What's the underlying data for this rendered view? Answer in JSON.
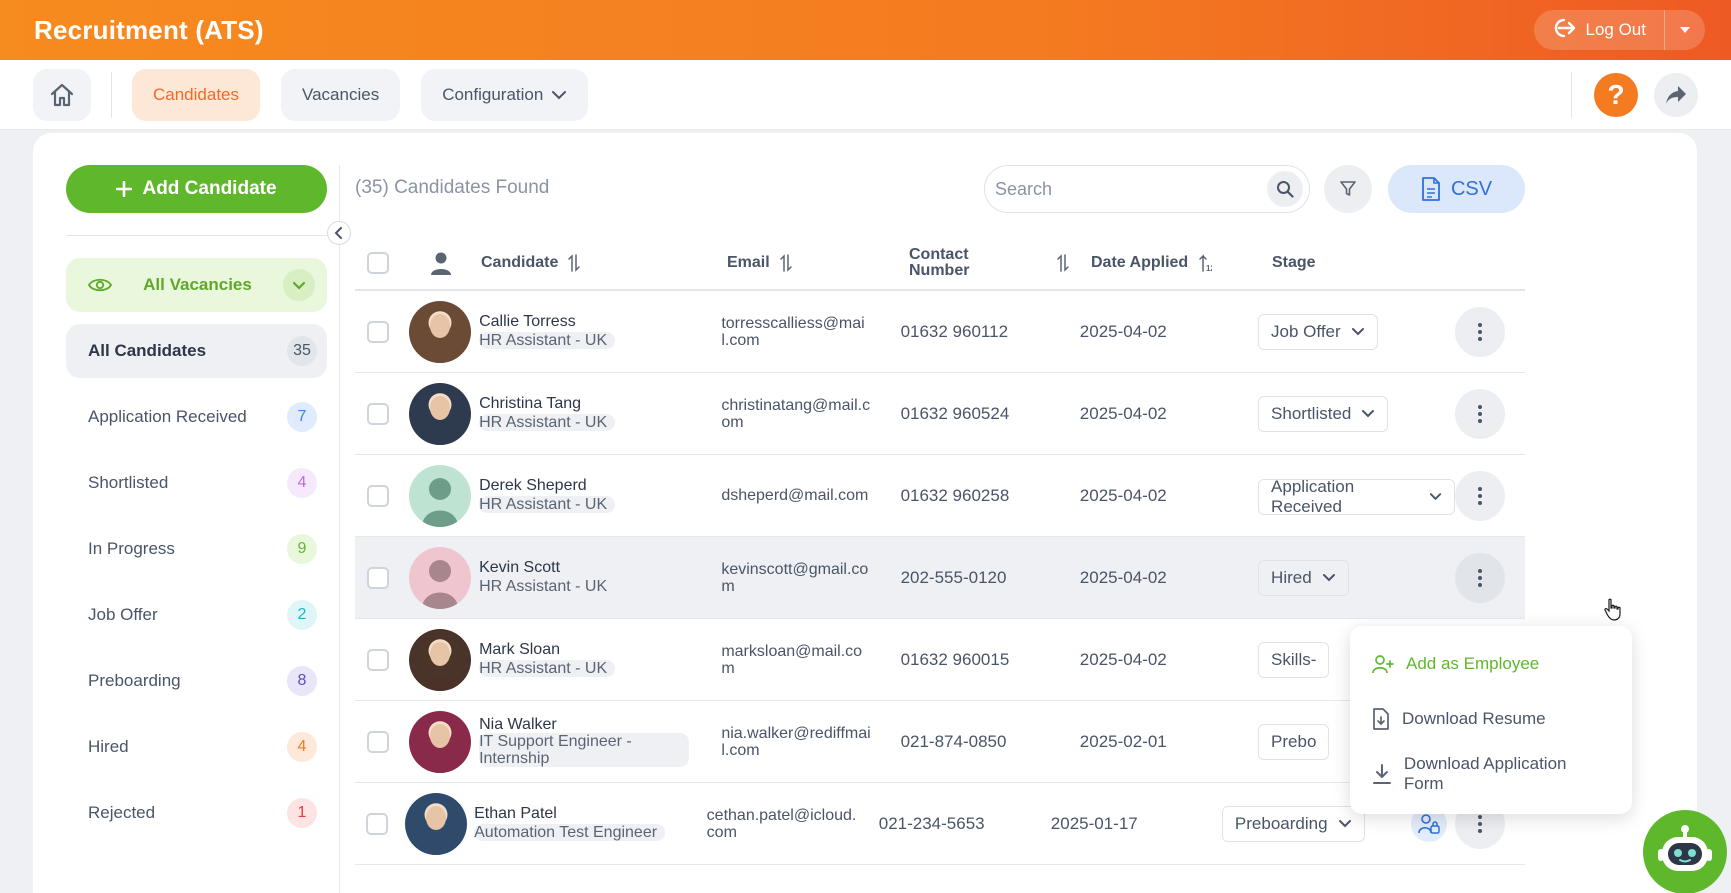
{
  "app": {
    "title": "Recruitment (ATS)",
    "logout_label": "Log Out"
  },
  "nav": {
    "tabs": [
      {
        "label": "Candidates",
        "active": true
      },
      {
        "label": "Vacancies",
        "active": false
      },
      {
        "label": "Configuration",
        "active": false
      }
    ],
    "help_label": "?"
  },
  "sidebar": {
    "add_label": "Add Candidate",
    "vacancy_filter": "All Vacancies",
    "stages": [
      {
        "name": "All Candidates",
        "count": "35",
        "color": "#4a5568",
        "bg": "#e2e5ea"
      },
      {
        "name": "Application Received",
        "count": "7",
        "color": "#3b82f6",
        "bg": "#e0ecfd"
      },
      {
        "name": "Shortlisted",
        "count": "4",
        "color": "#c266e6",
        "bg": "#f6e9fc"
      },
      {
        "name": "In Progress",
        "count": "9",
        "color": "#5fb82c",
        "bg": "#e9f7dc"
      },
      {
        "name": "Job Offer",
        "count": "2",
        "color": "#1fb3c4",
        "bg": "#dff6f8"
      },
      {
        "name": "Preboarding",
        "count": "8",
        "color": "#5b4fc4",
        "bg": "#e8e6f8"
      },
      {
        "name": "Hired",
        "count": "4",
        "color": "#f47b20",
        "bg": "#fde9da"
      },
      {
        "name": "Rejected",
        "count": "1",
        "color": "#e53e3e",
        "bg": "#fde3e3"
      }
    ]
  },
  "main": {
    "found_label": "(35) Candidates Found",
    "search_placeholder": "Search",
    "csv_label": "CSV",
    "headers": {
      "candidate": "Candidate",
      "email": "Email",
      "contact": "Contact Number",
      "date": "Date Applied",
      "stage": "Stage"
    },
    "rows": [
      {
        "name": "Callie Torress",
        "vacancy": "HR Assistant - UK",
        "email": "torresscalliess@mail.com",
        "phone": "01632 960112",
        "date": "2025-04-02",
        "stage": "Job Offer",
        "avatar": "photo",
        "avatar_color": "#6b4a36"
      },
      {
        "name": "Christina Tang",
        "vacancy": "HR Assistant - UK",
        "email": "christinatang@mail.com",
        "phone": "01632 960524",
        "date": "2025-04-02",
        "stage": "Shortlisted",
        "avatar": "photo",
        "avatar_color": "#2e3b4e"
      },
      {
        "name": "Derek Sheperd",
        "vacancy": "HR Assistant - UK",
        "email": "dsheperd@mail.com",
        "phone": "01632 960258",
        "date": "2025-04-02",
        "stage": "Application Received",
        "avatar": "placeholder-green"
      },
      {
        "name": "Kevin Scott",
        "vacancy": "HR Assistant - UK",
        "email": "kevinscott@gmail.com",
        "phone": "202-555-0120",
        "date": "2025-04-02",
        "stage": "Hired",
        "avatar": "placeholder-pink"
      },
      {
        "name": "Mark Sloan",
        "vacancy": "HR Assistant - UK",
        "email": "marksloan@mail.com",
        "phone": "01632 960015",
        "date": "2025-04-02",
        "stage": "Skills-",
        "avatar": "photo",
        "avatar_color": "#4a3328"
      },
      {
        "name": "Nia Walker",
        "vacancy": "IT Support Engineer - Internship",
        "email": "nia.walker@rediffmail.com",
        "phone": "021-874-0850",
        "date": "2025-02-01",
        "stage": "Prebo",
        "avatar": "photo",
        "avatar_color": "#8a2a4a"
      },
      {
        "name": "Ethan Patel",
        "vacancy": "Automation Test Engineer",
        "email": "cethan.patel@icloud.com",
        "phone": "021-234-5653",
        "date": "2025-01-17",
        "stage": "Preboarding",
        "avatar": "photo",
        "avatar_color": "#2f4a6a"
      }
    ]
  },
  "menu": {
    "items": [
      {
        "label": "Add as Employee"
      },
      {
        "label": "Download Resume"
      },
      {
        "label": "Download Application Form"
      }
    ]
  }
}
